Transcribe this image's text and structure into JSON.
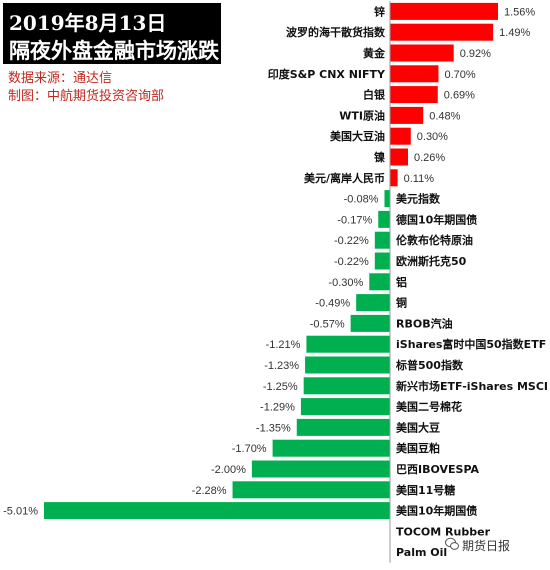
{
  "header": {
    "title_line1": "2019年8月13日",
    "title_line2": "隔夜外盘金融市场涨跌",
    "source": "数据来源：通达信",
    "maker": "制图：中航期货投资咨询部"
  },
  "colors": {
    "positive": "#ff0000",
    "negative": "#00b050"
  },
  "watermark": {
    "text": "期货日报",
    "icon": "wechat-icon"
  },
  "chart_data": {
    "type": "bar",
    "orientation": "horizontal",
    "categories": [
      "锌",
      "波罗的海干散货指数",
      "黄金",
      "印度S&P CNX NIFTY",
      "白银",
      "WTI原油",
      "美国大豆油",
      "镍",
      "美元/离岸人民币",
      "美元指数",
      "德国10年期国债",
      "伦敦布伦特原油",
      "欧洲斯托克50",
      "铝",
      "铜",
      "RBOB汽油",
      "iShares富时中国50指数ETF",
      "标普500指数",
      "新兴市场ETF-iShares MSCI",
      "美国二号棉花",
      "美国大豆",
      "美国豆粕",
      "巴西IBOVESPA",
      "美国11号糖",
      "美国10年期国债",
      "TOCOM Rubber",
      "Palm Oil"
    ],
    "values": [
      1.56,
      1.49,
      0.92,
      0.7,
      0.69,
      0.48,
      0.3,
      0.26,
      0.11,
      -0.08,
      -0.17,
      -0.22,
      -0.22,
      -0.3,
      -0.49,
      -0.57,
      -1.21,
      -1.23,
      -1.25,
      -1.29,
      -1.35,
      -1.7,
      -2.0,
      -2.28,
      -5.01,
      null,
      null
    ],
    "value_labels": [
      "1.56%",
      "1.49%",
      "0.92%",
      "0.70%",
      "0.69%",
      "0.48%",
      "0.30%",
      "0.26%",
      "0.11%",
      "-0.08%",
      "-0.17%",
      "-0.22%",
      "-0.22%",
      "-0.30%",
      "-0.49%",
      "-0.57%",
      "-1.21%",
      "-1.23%",
      "-1.25%",
      "-1.29%",
      "-1.35%",
      "-1.70%",
      "-2.00%",
      "-2.28%",
      "-5.01%",
      "",
      ""
    ],
    "unit": "%",
    "xlim": [
      -5.01,
      1.56
    ]
  }
}
